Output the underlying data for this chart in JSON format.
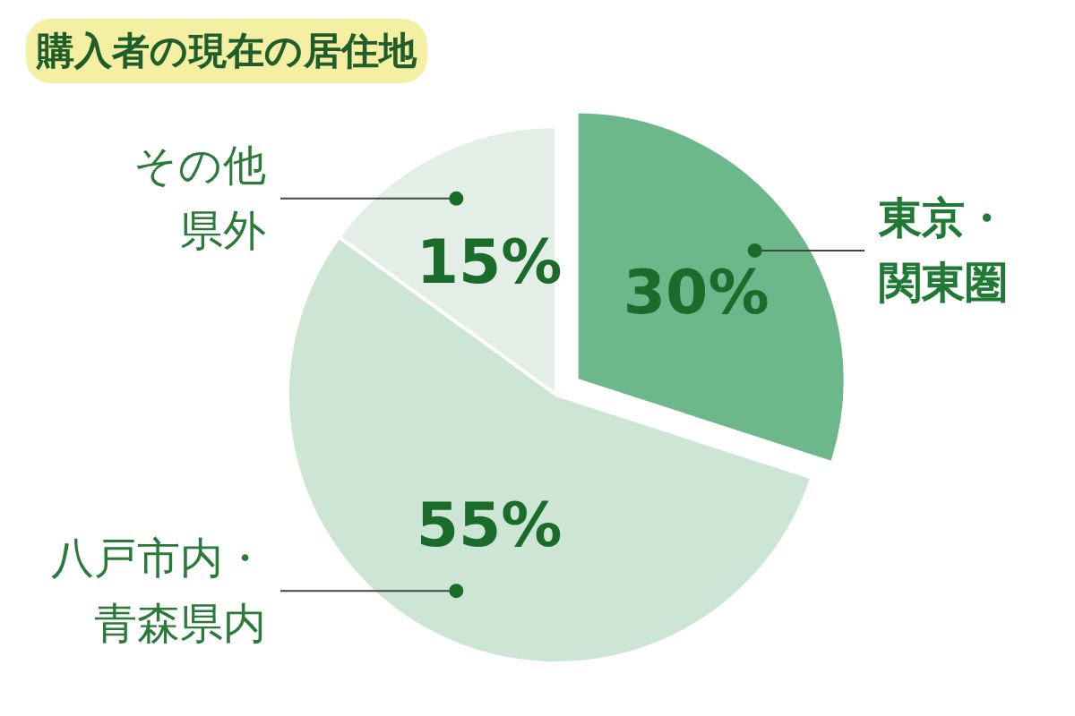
{
  "chart_data": {
    "type": "pie",
    "title": "購入者の現在の居住地",
    "categories": [
      "東京・関東圏",
      "八戸市内・青森県内",
      "その他県外"
    ],
    "values": [
      30,
      55,
      15
    ],
    "value_labels": [
      "30%",
      "55%",
      "15%"
    ],
    "colors": [
      "#6db88a",
      "#cde5d4",
      "#e3efe6"
    ]
  }
}
